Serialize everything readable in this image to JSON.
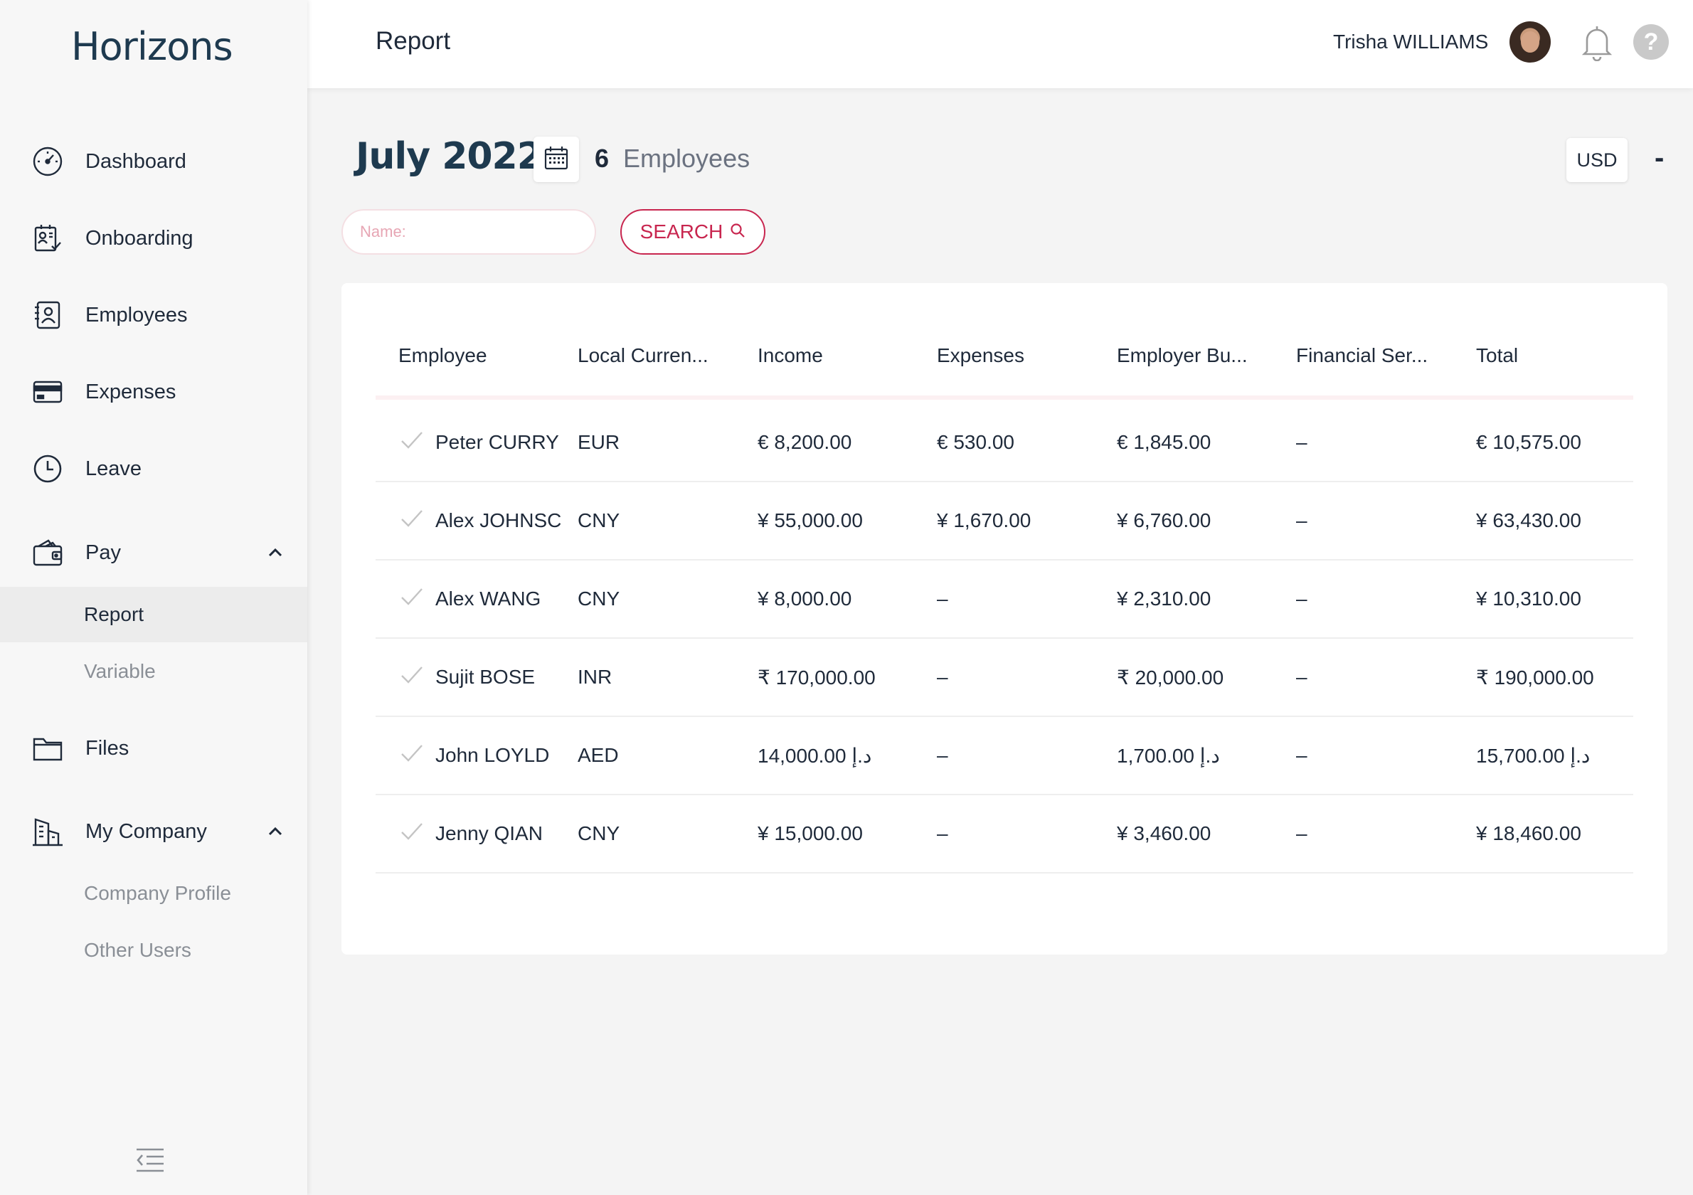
{
  "app": {
    "logo_text": "Horizons"
  },
  "sidebar": {
    "items": [
      {
        "label": "Dashboard",
        "icon": "dashboard-gauge-icon"
      },
      {
        "label": "Onboarding",
        "icon": "onboarding-icon"
      },
      {
        "label": "Employees",
        "icon": "employees-icon"
      },
      {
        "label": "Expenses",
        "icon": "credit-card-icon"
      },
      {
        "label": "Leave",
        "icon": "clock-icon"
      },
      {
        "label": "Pay",
        "icon": "wallet-icon",
        "expanded": true
      },
      {
        "label": "Files",
        "icon": "folder-icon"
      },
      {
        "label": "My Company",
        "icon": "building-icon",
        "expanded": true
      }
    ],
    "pay_sub": [
      {
        "label": "Report",
        "active": true
      },
      {
        "label": "Variable"
      }
    ],
    "company_sub": [
      {
        "label": "Company Profile"
      },
      {
        "label": "Other Users"
      }
    ],
    "collapse_icon": "collapse-menu-icon"
  },
  "topbar": {
    "title": "Report",
    "user_name": "Trisha WILLIAMS",
    "help_glyph": "?"
  },
  "report": {
    "month": "July 2022",
    "employee_count": "6",
    "employee_label": "Employees",
    "currency": "USD",
    "currency_toggle": "-",
    "search": {
      "placeholder": "Name:",
      "value": "",
      "button_label": "SEARCH"
    }
  },
  "table": {
    "headers": [
      "Employee",
      "Local Curren...",
      "Income",
      "Expenses",
      "Employer Bu...",
      "Financial Ser...",
      "Total"
    ],
    "rows": [
      {
        "employee": "Peter CURRY",
        "currency": "EUR",
        "income": "€ 8,200.00",
        "expenses": "€ 530.00",
        "employer": "€ 1,845.00",
        "financial": "–",
        "total": "€ 10,575.00"
      },
      {
        "employee": "Alex JOHNSC",
        "currency": "CNY",
        "income": "¥ 55,000.00",
        "expenses": "¥ 1,670.00",
        "employer": "¥ 6,760.00",
        "financial": "–",
        "total": "¥ 63,430.00"
      },
      {
        "employee": "Alex WANG",
        "currency": "CNY",
        "income": "¥ 8,000.00",
        "expenses": "–",
        "employer": "¥ 2,310.00",
        "financial": "–",
        "total": "¥ 10,310.00"
      },
      {
        "employee": "Sujit BOSE",
        "currency": "INR",
        "income": "₹ 170,000.00",
        "expenses": "–",
        "employer": "₹ 20,000.00",
        "financial": "–",
        "total": "₹ 190,000.00"
      },
      {
        "employee": "John LOYLD",
        "currency": "AED",
        "income": "14,000.00 د.إ",
        "expenses": "–",
        "employer": "1,700.00 د.إ",
        "financial": "–",
        "total": "15,700.00 د.إ"
      },
      {
        "employee": "Jenny QIAN",
        "currency": "CNY",
        "income": "¥ 15,000.00",
        "expenses": "–",
        "employer": "¥ 3,460.00",
        "financial": "–",
        "total": "¥ 18,460.00"
      }
    ]
  },
  "colors": {
    "accent": "#c8264f",
    "brand": "#1e3a4f",
    "sidebar_bg": "#f7f7f7",
    "page_bg": "#f4f4f4"
  }
}
